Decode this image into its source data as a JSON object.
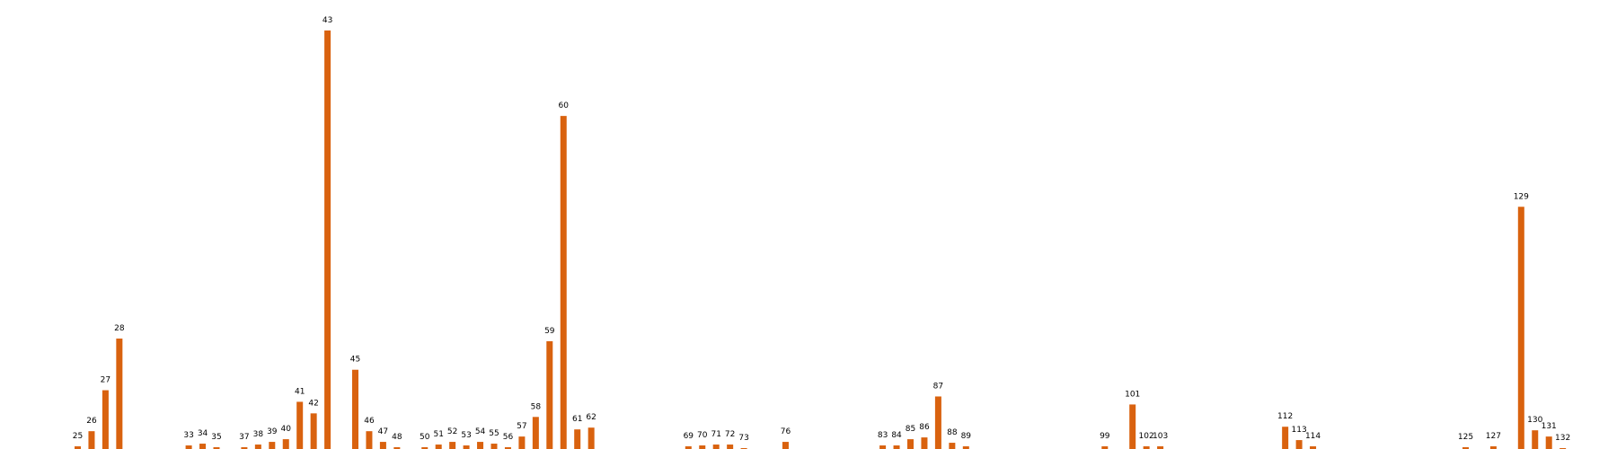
{
  "colors": {
    "bar": "#d9620f",
    "label": "#000000",
    "background": "#ffffff"
  },
  "chart_data": {
    "type": "bar",
    "title": "",
    "xlabel": "",
    "ylabel": "",
    "grid": false,
    "legend": "none",
    "ylim": [
      0,
      480
    ],
    "categories": [
      "25",
      "26",
      "27",
      "28",
      "33",
      "34",
      "35",
      "37",
      "38",
      "39",
      "40",
      "41",
      "42",
      "43",
      "45",
      "46",
      "47",
      "48",
      "50",
      "51",
      "52",
      "53",
      "54",
      "55",
      "56",
      "57",
      "58",
      "59",
      "60",
      "61",
      "62",
      "69",
      "70",
      "71",
      "72",
      "73",
      "76",
      "83",
      "84",
      "85",
      "86",
      "87",
      "88",
      "89",
      "99",
      "101",
      "102",
      "103",
      "112",
      "113",
      "114",
      "125",
      "127",
      "129",
      "130",
      "131",
      "132"
    ],
    "values": [
      3,
      20,
      66,
      124,
      4,
      6,
      2,
      2,
      5,
      8,
      11,
      53,
      40,
      470,
      89,
      20,
      8,
      2,
      2,
      5,
      8,
      4,
      8,
      6,
      2,
      14,
      36,
      121,
      374,
      22,
      24,
      3,
      4,
      5,
      5,
      1,
      8,
      4,
      4,
      11,
      13,
      59,
      7,
      3,
      3,
      50,
      3,
      3,
      25,
      10,
      3,
      2,
      3,
      272,
      21,
      14,
      1
    ]
  }
}
